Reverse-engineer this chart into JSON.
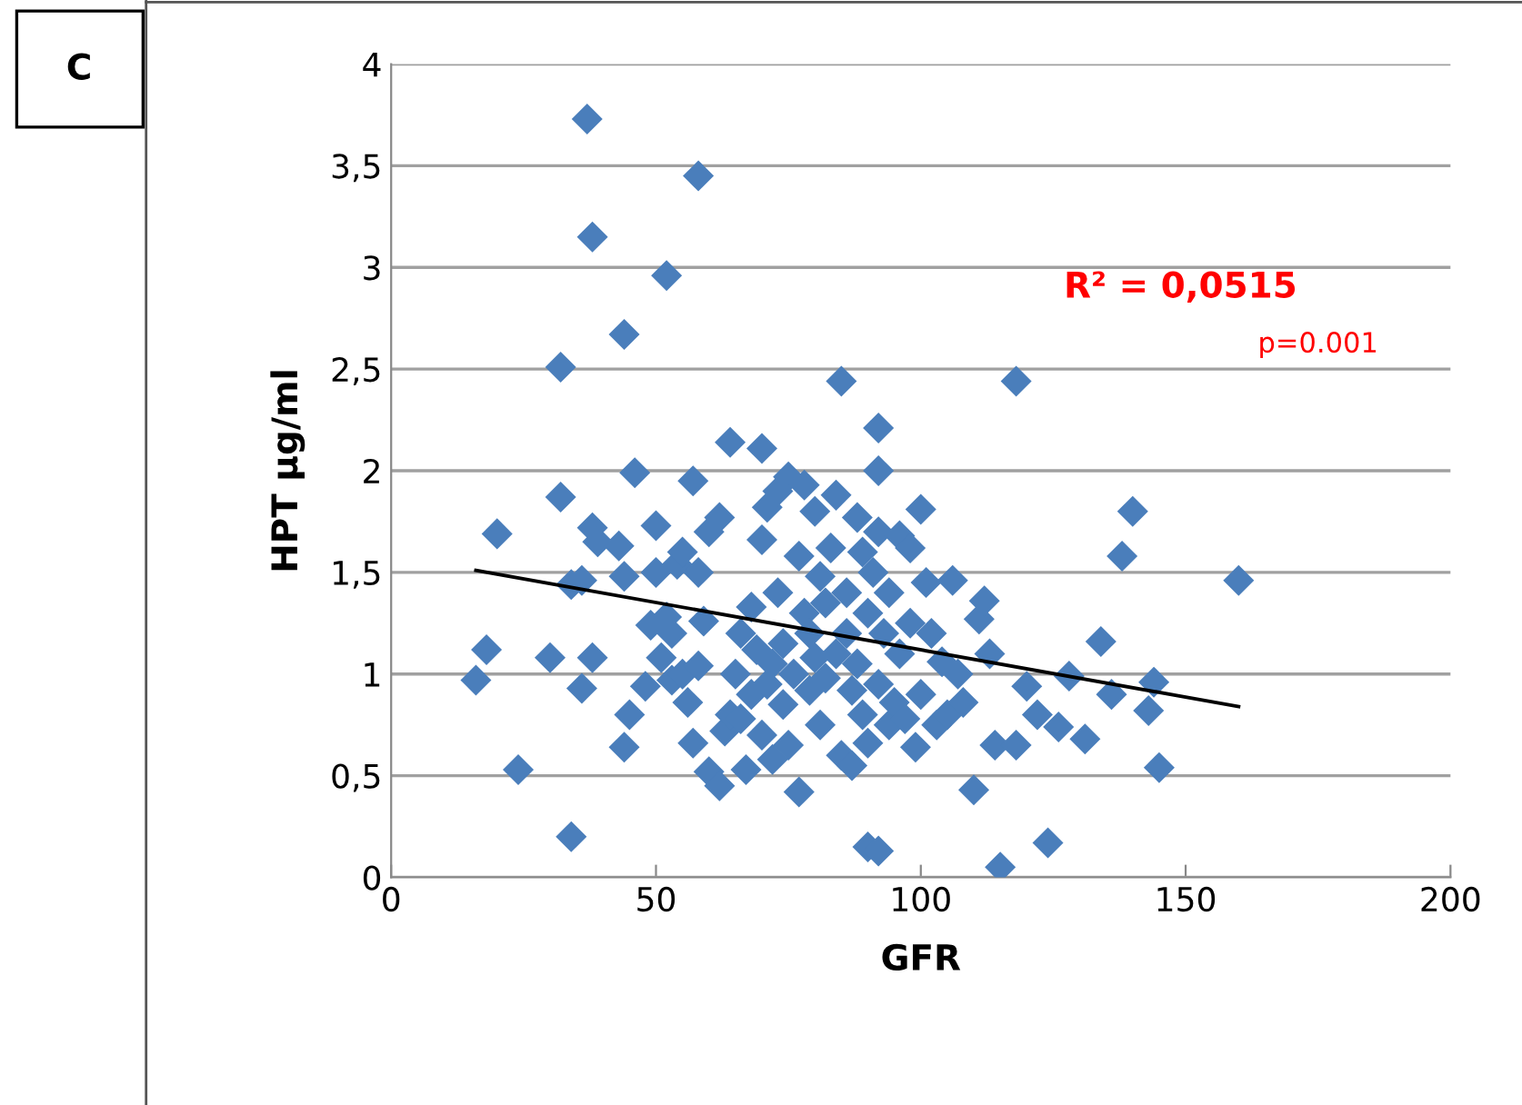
{
  "chart_data": {
    "type": "scatter",
    "xlabel": "GFR",
    "ylabel": "HPT µg/ml",
    "grid": "y",
    "legend": false,
    "xlim": [
      0,
      200
    ],
    "xticks": [
      0,
      50,
      100,
      150,
      200
    ],
    "ylim": [
      0,
      4
    ],
    "yticks": [
      0,
      {
        "value": 0.5,
        "label": "0,5"
      },
      1,
      {
        "value": 1.5,
        "label": "1,5"
      },
      2,
      {
        "value": 2.5,
        "label": "2,5"
      },
      3,
      {
        "value": 3.5,
        "label": "3,5"
      },
      4
    ],
    "annotations": [
      "C",
      "R² = 0,0515",
      "p=0.001"
    ],
    "series": [
      {
        "color": "#4a7ebb",
        "marker": "diamond",
        "x": [
          37,
          38,
          58,
          52,
          44,
          32,
          85,
          92,
          92,
          16,
          18,
          20,
          24,
          30,
          32,
          34,
          34,
          36,
          36,
          38,
          38,
          39,
          43,
          44,
          44,
          45,
          46,
          48,
          49,
          50,
          50,
          51,
          52,
          53,
          53,
          54,
          55,
          55,
          56,
          57,
          57,
          58,
          58,
          59,
          60,
          60,
          62,
          62,
          63,
          64,
          64,
          65,
          66,
          66,
          67,
          68,
          68,
          69,
          70,
          70,
          70,
          71,
          71,
          72,
          72,
          73,
          73,
          74,
          74,
          75,
          75,
          76,
          77,
          77,
          78,
          78,
          79,
          79,
          80,
          80,
          81,
          81,
          82,
          82,
          83,
          84,
          84,
          85,
          86,
          86,
          87,
          87,
          88,
          88,
          89,
          89,
          90,
          90,
          90,
          91,
          92,
          92,
          92,
          93,
          94,
          94,
          95,
          96,
          96,
          97,
          98,
          98,
          99,
          100,
          100,
          101,
          102,
          103,
          104,
          105,
          106,
          107,
          108,
          110,
          111,
          112,
          113,
          114,
          115,
          118,
          118,
          120,
          122,
          124,
          126,
          128,
          131,
          134,
          136,
          138,
          140,
          143,
          144,
          145,
          160
        ],
        "values": [
          3.73,
          3.15,
          3.45,
          2.96,
          2.67,
          2.51,
          2.44,
          2.21,
          2.0,
          0.97,
          1.12,
          1.69,
          0.53,
          1.08,
          1.87,
          1.44,
          0.2,
          0.93,
          1.46,
          1.08,
          1.72,
          1.65,
          1.63,
          0.64,
          1.48,
          0.8,
          1.99,
          0.94,
          1.24,
          1.73,
          1.5,
          1.08,
          1.28,
          1.2,
          0.97,
          1.54,
          1.0,
          1.6,
          0.86,
          0.66,
          1.95,
          1.5,
          1.04,
          1.26,
          0.52,
          1.7,
          0.45,
          1.77,
          0.72,
          2.14,
          0.8,
          1.0,
          0.78,
          1.2,
          0.53,
          1.33,
          0.9,
          1.12,
          2.11,
          1.66,
          0.7,
          1.82,
          0.95,
          1.05,
          0.58,
          1.4,
          1.9,
          0.85,
          1.15,
          1.97,
          0.65,
          1.0,
          1.58,
          0.42,
          1.3,
          1.93,
          0.92,
          1.2,
          1.08,
          1.8,
          0.75,
          1.48,
          1.35,
          0.98,
          1.62,
          1.1,
          1.88,
          0.6,
          1.4,
          1.2,
          0.55,
          0.92,
          1.77,
          1.05,
          0.8,
          1.6,
          1.3,
          0.66,
          0.15,
          1.5,
          0.13,
          1.7,
          0.95,
          1.2,
          0.75,
          1.4,
          0.86,
          1.68,
          1.1,
          0.78,
          1.62,
          1.25,
          0.64,
          1.81,
          0.9,
          1.45,
          1.2,
          0.75,
          1.06,
          0.8,
          1.46,
          1.0,
          0.86,
          0.43,
          1.27,
          1.36,
          1.1,
          0.65,
          0.05,
          0.65,
          2.44,
          0.94,
          0.8,
          0.17,
          0.74,
          0.99,
          0.68,
          1.16,
          0.9,
          1.58,
          1.8,
          0.82,
          0.96,
          0.54,
          1.46
        ]
      },
      {
        "type": "line",
        "marker": "none",
        "color": "#000000",
        "x": [
          16,
          160
        ],
        "values": [
          1.51,
          0.84
        ]
      }
    ]
  }
}
